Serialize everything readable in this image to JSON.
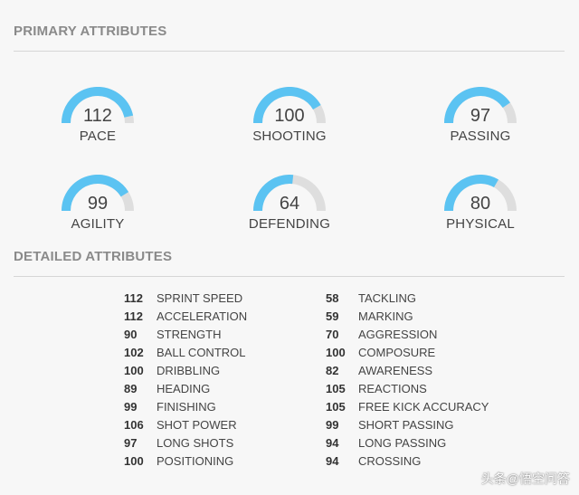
{
  "primary": {
    "title": "PRIMARY ATTRIBUTES",
    "gauge_max": 120,
    "fill_color": "#5bc3f2",
    "track_color": "#dedede",
    "gauges": [
      {
        "label": "PACE",
        "value": "112"
      },
      {
        "label": "SHOOTING",
        "value": "100"
      },
      {
        "label": "PASSING",
        "value": "97"
      },
      {
        "label": "AGILITY",
        "value": "99"
      },
      {
        "label": "DEFENDING",
        "value": "64"
      },
      {
        "label": "PHYSICAL",
        "value": "80"
      }
    ]
  },
  "detailed": {
    "title": "DETAILED ATTRIBUTES",
    "left": [
      {
        "value": "112",
        "name": "SPRINT SPEED"
      },
      {
        "value": "112",
        "name": "ACCELERATION"
      },
      {
        "value": "90",
        "name": "STRENGTH"
      },
      {
        "value": "102",
        "name": "BALL CONTROL"
      },
      {
        "value": "100",
        "name": "DRIBBLING"
      },
      {
        "value": "89",
        "name": "HEADING"
      },
      {
        "value": "99",
        "name": "FINISHING"
      },
      {
        "value": "106",
        "name": "SHOT POWER"
      },
      {
        "value": "97",
        "name": "LONG SHOTS"
      },
      {
        "value": "100",
        "name": "POSITIONING"
      }
    ],
    "right": [
      {
        "value": "58",
        "name": "TACKLING"
      },
      {
        "value": "59",
        "name": "MARKING"
      },
      {
        "value": "70",
        "name": "AGGRESSION"
      },
      {
        "value": "100",
        "name": "COMPOSURE"
      },
      {
        "value": "82",
        "name": "AWARENESS"
      },
      {
        "value": "105",
        "name": "REACTIONS"
      },
      {
        "value": "105",
        "name": "FREE KICK ACCURACY"
      },
      {
        "value": "99",
        "name": "SHORT PASSING"
      },
      {
        "value": "94",
        "name": "LONG PASSING"
      },
      {
        "value": "94",
        "name": "CROSSING"
      }
    ]
  },
  "watermark": "头条@悟空问答"
}
